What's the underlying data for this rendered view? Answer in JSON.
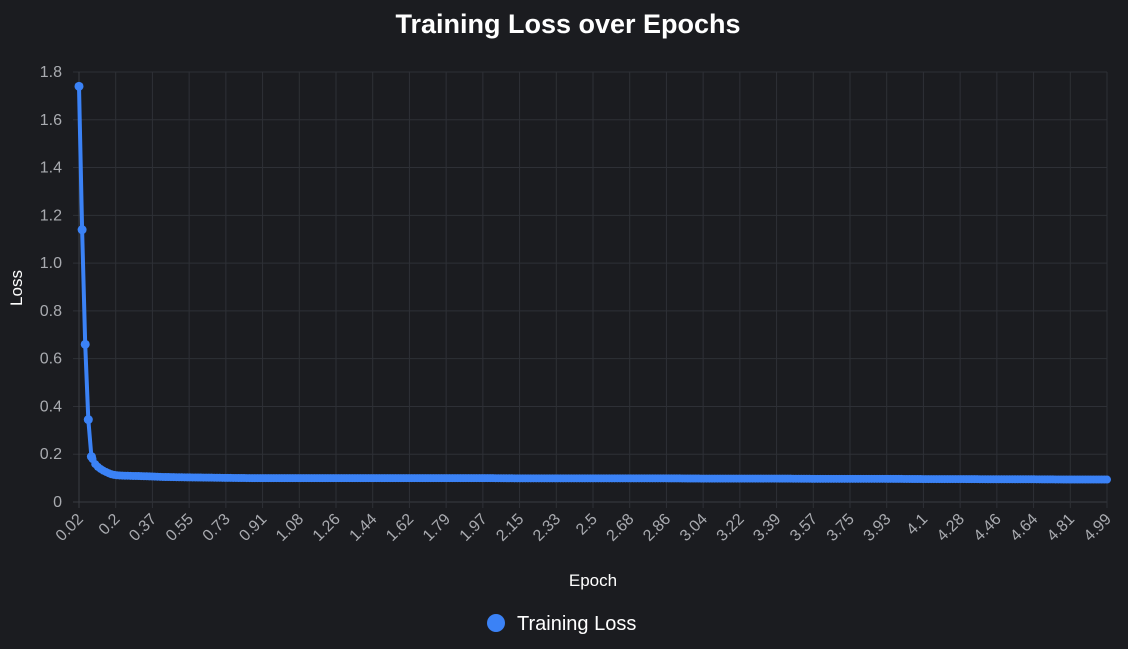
{
  "chart_data": {
    "type": "line",
    "title": "Training Loss over Epochs",
    "xlabel": "Epoch",
    "ylabel": "Loss",
    "ylim": [
      0,
      1.8
    ],
    "y_ticks": [
      "0",
      "0.2",
      "0.4",
      "0.6",
      "0.8",
      "1.0",
      "1.2",
      "1.4",
      "1.6",
      "1.8"
    ],
    "x_ticks": [
      "0.02",
      "0.2",
      "0.37",
      "0.55",
      "0.73",
      "0.91",
      "1.08",
      "1.26",
      "1.44",
      "1.62",
      "1.79",
      "1.97",
      "2.15",
      "2.33",
      "2.5",
      "2.68",
      "2.86",
      "3.04",
      "3.22",
      "3.39",
      "3.57",
      "3.75",
      "3.93",
      "4.1",
      "4.28",
      "4.46",
      "4.64",
      "4.81",
      "4.99"
    ],
    "x_range": [
      0.02,
      4.99
    ],
    "grid": true,
    "legend_position": "bottom",
    "series": [
      {
        "name": "Training Loss",
        "color": "#3b82f6",
        "points": [
          [
            0.02,
            1.74
          ],
          [
            0.035,
            1.14
          ],
          [
            0.05,
            0.66
          ],
          [
            0.065,
            0.345
          ],
          [
            0.08,
            0.19
          ],
          [
            0.095,
            0.162
          ],
          [
            0.11,
            0.148
          ],
          [
            0.125,
            0.138
          ],
          [
            0.14,
            0.13
          ],
          [
            0.155,
            0.124
          ],
          [
            0.17,
            0.118
          ],
          [
            0.185,
            0.114
          ],
          [
            0.2,
            0.112
          ],
          [
            0.22,
            0.111
          ],
          [
            0.24,
            0.11
          ],
          [
            0.26,
            0.11
          ],
          [
            0.28,
            0.109
          ],
          [
            0.3,
            0.109
          ],
          [
            0.33,
            0.108
          ],
          [
            0.37,
            0.107
          ],
          [
            0.42,
            0.105
          ],
          [
            0.48,
            0.104
          ],
          [
            0.55,
            0.103
          ],
          [
            0.65,
            0.102
          ],
          [
            0.73,
            0.101
          ],
          [
            0.85,
            0.1
          ],
          [
            0.91,
            0.1
          ],
          [
            1.08,
            0.1
          ],
          [
            1.26,
            0.1
          ],
          [
            1.44,
            0.1
          ],
          [
            1.62,
            0.1
          ],
          [
            1.79,
            0.1
          ],
          [
            1.97,
            0.1
          ],
          [
            2.15,
            0.099
          ],
          [
            2.33,
            0.099
          ],
          [
            2.5,
            0.099
          ],
          [
            2.68,
            0.099
          ],
          [
            2.86,
            0.099
          ],
          [
            3.04,
            0.098
          ],
          [
            3.22,
            0.098
          ],
          [
            3.39,
            0.098
          ],
          [
            3.57,
            0.097
          ],
          [
            3.75,
            0.097
          ],
          [
            3.93,
            0.097
          ],
          [
            4.1,
            0.096
          ],
          [
            4.28,
            0.096
          ],
          [
            4.46,
            0.095
          ],
          [
            4.64,
            0.095
          ],
          [
            4.81,
            0.094
          ],
          [
            4.99,
            0.094
          ]
        ]
      }
    ]
  }
}
